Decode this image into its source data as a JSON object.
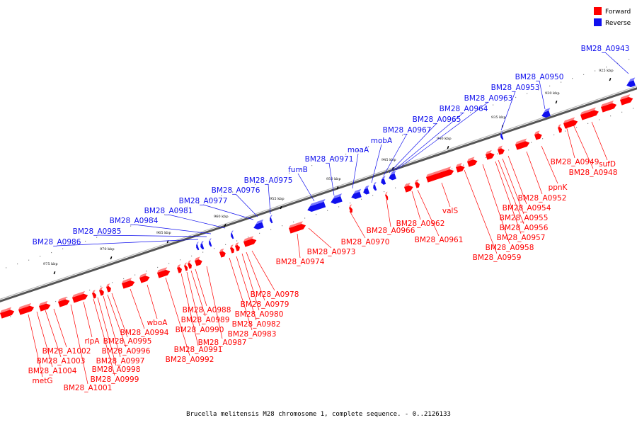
{
  "legend": {
    "forward": "Forward",
    "reverse": "Reverse"
  },
  "footer": "Brucella melitensis M28 chromosome 1, complete sequence. - 0..2126133",
  "colors": {
    "forward": "#ff0000",
    "reverse": "#1010ee",
    "backbone": "#707070"
  },
  "ticks": [
    "925 kbp",
    "930 kbp",
    "935 kbp",
    "940 kbp",
    "945 kbp",
    "950 kbp",
    "955 kbp",
    "960 kbp",
    "965 kbp",
    "970 kbp",
    "975 kbp"
  ],
  "reverse_labels": [
    "BM28_A0943",
    "BM28_A0950",
    "BM28_A0953",
    "BM28_A0963",
    "BM28_A0964",
    "BM28_A0965",
    "BM28_A0967",
    "mobA",
    "moaA",
    "BM28_A0971",
    "fumB",
    "BM28_A0975",
    "BM28_A0976",
    "BM28_A0977",
    "BM28_A0981",
    "BM28_A0984",
    "BM28_A0985",
    "BM28_A0986"
  ],
  "forward_labels": [
    "sufD",
    "BM28_A0948",
    "BM28_A0949",
    "ppnK",
    "BM28_A0952",
    "BM28_A0954",
    "BM28_A0955",
    "BM28_A0956",
    "BM28_A0957",
    "BM28_A0958",
    "BM28_A0959",
    "valS",
    "BM28_A0961",
    "BM28_A0962",
    "BM28_A0966",
    "BM28_A0970",
    "BM28_A0973",
    "BM28_A0974",
    "BM28_A0978",
    "BM28_A0979",
    "BM28_A0980",
    "BM28_A0982",
    "BM28_A0983",
    "BM28_A0987",
    "BM28_A0988",
    "BM28_A0989",
    "BM28_A0990",
    "BM28_A0991",
    "BM28_A0992",
    "wboA",
    "BM28_A0994",
    "BM28_A0995",
    "BM28_A0996",
    "BM28_A0997",
    "BM28_A0998",
    "BM28_A0999",
    "rlpA",
    "BM28_A1001",
    "BM28_A1002",
    "BM28_A1003",
    "BM28_A1004",
    "metG"
  ]
}
